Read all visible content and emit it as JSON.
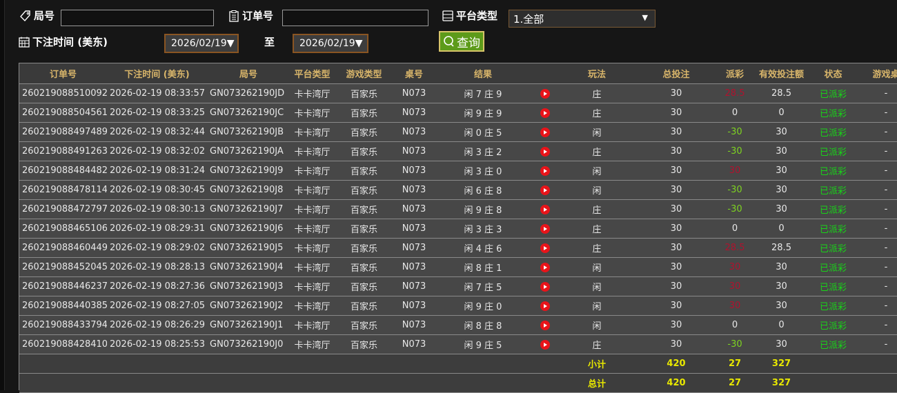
{
  "filters": {
    "round_label": "局号",
    "round_value": "",
    "order_label": "订单号",
    "order_value": "",
    "platform_label": "平台类型",
    "platform_value": "1.全部",
    "time_label": "下注时间 (美东)",
    "date_from": "2026/02/19▼",
    "to_label": "至",
    "date_to": "2026/02/19▼",
    "query_label": "查询"
  },
  "table": {
    "headers": [
      "订单号",
      "下注时间 (美东)",
      "局号",
      "平台类型",
      "游戏类型",
      "桌号",
      "结果",
      "",
      "玩法",
      "总投注",
      "派彩",
      "有效投注额",
      "状态",
      "游戏桌"
    ],
    "rows": [
      {
        "order": "260219088510092",
        "time": "2026-02-19 08:33:57",
        "round": "GN073262190JD",
        "platform": "卡卡湾厅",
        "game": "百家乐",
        "table": "N073",
        "result": "闲 7 庄 9",
        "play": "庄",
        "bet": "30",
        "payout": "28.5",
        "payout_color": "red",
        "valid": "28.5",
        "status": "已派彩",
        "extra": "-"
      },
      {
        "order": "260219088504561",
        "time": "2026-02-19 08:33:25",
        "round": "GN073262190JC",
        "platform": "卡卡湾厅",
        "game": "百家乐",
        "table": "N073",
        "result": "闲 9 庄 9",
        "play": "庄",
        "bet": "30",
        "payout": "0",
        "payout_color": "white",
        "valid": "0",
        "status": "已派彩",
        "extra": "-"
      },
      {
        "order": "260219088497489",
        "time": "2026-02-19 08:32:44",
        "round": "GN073262190JB",
        "platform": "卡卡湾厅",
        "game": "百家乐",
        "table": "N073",
        "result": "闲 0 庄 5",
        "play": "闲",
        "bet": "30",
        "payout": "-30",
        "payout_color": "green",
        "valid": "30",
        "status": "已派彩",
        "extra": "-"
      },
      {
        "order": "260219088491263",
        "time": "2026-02-19 08:32:02",
        "round": "GN073262190JA",
        "platform": "卡卡湾厅",
        "game": "百家乐",
        "table": "N073",
        "result": "闲 3 庄 2",
        "play": "庄",
        "bet": "30",
        "payout": "-30",
        "payout_color": "green",
        "valid": "30",
        "status": "已派彩",
        "extra": "-"
      },
      {
        "order": "260219088484482",
        "time": "2026-02-19 08:31:24",
        "round": "GN073262190J9",
        "platform": "卡卡湾厅",
        "game": "百家乐",
        "table": "N073",
        "result": "闲 3 庄 0",
        "play": "闲",
        "bet": "30",
        "payout": "30",
        "payout_color": "red",
        "valid": "30",
        "status": "已派彩",
        "extra": "-"
      },
      {
        "order": "260219088478114",
        "time": "2026-02-19 08:30:45",
        "round": "GN073262190J8",
        "platform": "卡卡湾厅",
        "game": "百家乐",
        "table": "N073",
        "result": "闲 6 庄 8",
        "play": "闲",
        "bet": "30",
        "payout": "-30",
        "payout_color": "green",
        "valid": "30",
        "status": "已派彩",
        "extra": "-"
      },
      {
        "order": "260219088472797",
        "time": "2026-02-19 08:30:13",
        "round": "GN073262190J7",
        "platform": "卡卡湾厅",
        "game": "百家乐",
        "table": "N073",
        "result": "闲 9 庄 8",
        "play": "庄",
        "bet": "30",
        "payout": "-30",
        "payout_color": "green",
        "valid": "30",
        "status": "已派彩",
        "extra": "-"
      },
      {
        "order": "260219088465106",
        "time": "2026-02-19 08:29:31",
        "round": "GN073262190J6",
        "platform": "卡卡湾厅",
        "game": "百家乐",
        "table": "N073",
        "result": "闲 3 庄 3",
        "play": "庄",
        "bet": "30",
        "payout": "0",
        "payout_color": "white",
        "valid": "0",
        "status": "已派彩",
        "extra": "-"
      },
      {
        "order": "260219088460449",
        "time": "2026-02-19 08:29:02",
        "round": "GN073262190J5",
        "platform": "卡卡湾厅",
        "game": "百家乐",
        "table": "N073",
        "result": "闲 4 庄 6",
        "play": "庄",
        "bet": "30",
        "payout": "28.5",
        "payout_color": "red",
        "valid": "28.5",
        "status": "已派彩",
        "extra": "-"
      },
      {
        "order": "260219088452045",
        "time": "2026-02-19 08:28:13",
        "round": "GN073262190J4",
        "platform": "卡卡湾厅",
        "game": "百家乐",
        "table": "N073",
        "result": "闲 8 庄 1",
        "play": "闲",
        "bet": "30",
        "payout": "30",
        "payout_color": "red",
        "valid": "30",
        "status": "已派彩",
        "extra": "-"
      },
      {
        "order": "260219088446237",
        "time": "2026-02-19 08:27:36",
        "round": "GN073262190J3",
        "platform": "卡卡湾厅",
        "game": "百家乐",
        "table": "N073",
        "result": "闲 7 庄 5",
        "play": "闲",
        "bet": "30",
        "payout": "30",
        "payout_color": "red",
        "valid": "30",
        "status": "已派彩",
        "extra": "-"
      },
      {
        "order": "260219088440385",
        "time": "2026-02-19 08:27:05",
        "round": "GN073262190J2",
        "platform": "卡卡湾厅",
        "game": "百家乐",
        "table": "N073",
        "result": "闲 9 庄 0",
        "play": "闲",
        "bet": "30",
        "payout": "30",
        "payout_color": "red",
        "valid": "30",
        "status": "已派彩",
        "extra": "-"
      },
      {
        "order": "260219088433794",
        "time": "2026-02-19 08:26:29",
        "round": "GN073262190J1",
        "platform": "卡卡湾厅",
        "game": "百家乐",
        "table": "N073",
        "result": "闲 8 庄 8",
        "play": "闲",
        "bet": "30",
        "payout": "0",
        "payout_color": "white",
        "valid": "0",
        "status": "已派彩",
        "extra": "-"
      },
      {
        "order": "260219088428410",
        "time": "2026-02-19 08:25:53",
        "round": "GN073262190J0",
        "platform": "卡卡湾厅",
        "game": "百家乐",
        "table": "N073",
        "result": "闲 9 庄 5",
        "play": "庄",
        "bet": "30",
        "payout": "-30",
        "payout_color": "green",
        "valid": "30",
        "status": "已派彩",
        "extra": "-"
      }
    ],
    "subtotal": {
      "label": "小计",
      "bet": "420",
      "payout": "27",
      "valid": "327"
    },
    "total": {
      "label": "总计",
      "bet": "420",
      "payout": "27",
      "valid": "327"
    }
  },
  "colors": {
    "header_text": "#d8b56a",
    "row_bg": "#474747",
    "payout_win": "#b0122e",
    "payout_loss": "#7ed321",
    "status": "#18d418",
    "summary": "#e8e800",
    "query_button": "#5d9b1a"
  }
}
